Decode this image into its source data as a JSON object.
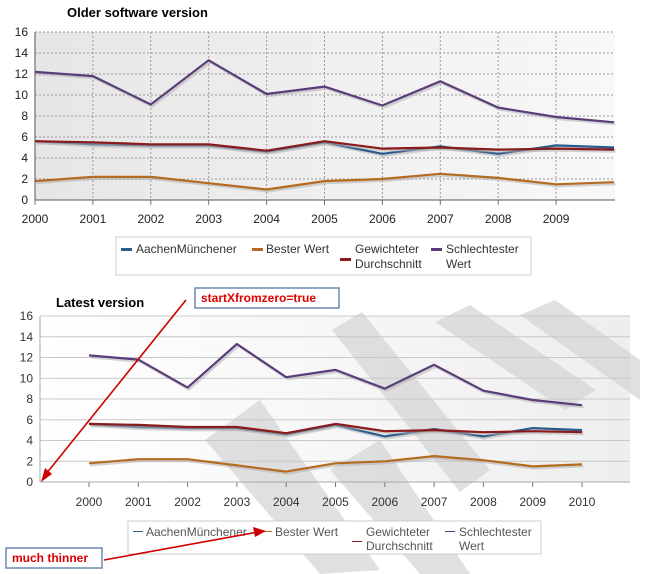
{
  "chart_data": [
    {
      "type": "line",
      "title": "Older software version",
      "x": [
        2000,
        2001,
        2002,
        2003,
        2004,
        2005,
        2006,
        2007,
        2008,
        2009,
        2010
      ],
      "x_tick_labels": [
        "2000",
        "2001",
        "2002",
        "2003",
        "2004",
        "2005",
        "2006",
        "2007",
        "2008",
        "2009"
      ],
      "ylim": [
        0,
        16
      ],
      "y_ticks": [
        0,
        2,
        4,
        6,
        8,
        10,
        12,
        14,
        16
      ],
      "grid": true,
      "legend_position": "bottom",
      "series": [
        {
          "name": "AachenMünchener",
          "color": "#2c5a8c",
          "values": [
            5.6,
            5.3,
            5.2,
            5.2,
            4.6,
            5.5,
            4.4,
            5.1,
            4.4,
            5.2,
            5.0
          ]
        },
        {
          "name": "Bester Wert",
          "color": "#b36b1f",
          "values": [
            1.8,
            2.2,
            2.2,
            1.6,
            1.0,
            1.8,
            2.0,
            2.5,
            2.1,
            1.5,
            1.7
          ]
        },
        {
          "name": "Gewichteter Durchschnitt",
          "color": "#8b1a1a",
          "values": [
            5.6,
            5.5,
            5.3,
            5.3,
            4.7,
            5.6,
            4.9,
            5.0,
            4.8,
            4.9,
            4.8
          ]
        },
        {
          "name": "Schlechtester Wert",
          "color": "#5a3c7a",
          "values": [
            12.2,
            11.8,
            9.1,
            13.3,
            10.1,
            10.8,
            9.0,
            11.3,
            8.8,
            7.9,
            7.4
          ]
        }
      ]
    },
    {
      "type": "line",
      "title": "Latest version",
      "x": [
        2000,
        2001,
        2002,
        2003,
        2004,
        2005,
        2006,
        2007,
        2008,
        2009,
        2010
      ],
      "x_tick_labels": [
        "2000",
        "2001",
        "2002",
        "2003",
        "2004",
        "2005",
        "2006",
        "2007",
        "2008",
        "2009",
        "2010"
      ],
      "ylim": [
        0,
        16
      ],
      "y_ticks": [
        0,
        2,
        4,
        6,
        8,
        10,
        12,
        14,
        16
      ],
      "grid": true,
      "legend_position": "bottom",
      "series": [
        {
          "name": "AachenMünchener",
          "color": "#2c5a8c",
          "values": [
            5.6,
            5.3,
            5.2,
            5.2,
            4.6,
            5.5,
            4.4,
            5.1,
            4.4,
            5.2,
            5.0
          ]
        },
        {
          "name": "Bester Wert",
          "color": "#b36b1f",
          "values": [
            1.8,
            2.2,
            2.2,
            1.6,
            1.0,
            1.8,
            2.0,
            2.5,
            2.1,
            1.5,
            1.7
          ]
        },
        {
          "name": "Gewichteter Durchschnitt",
          "color": "#8b1a1a",
          "values": [
            5.6,
            5.5,
            5.3,
            5.3,
            4.7,
            5.6,
            4.9,
            5.0,
            4.8,
            4.9,
            4.8
          ]
        },
        {
          "name": "Schlechtester Wert",
          "color": "#5a3c7a",
          "values": [
            12.2,
            11.8,
            9.1,
            13.3,
            10.1,
            10.8,
            9.0,
            11.3,
            8.8,
            7.9,
            7.4
          ]
        }
      ]
    }
  ],
  "annotations": {
    "start_x_label": "startXfromzero=true",
    "thinner_label": "much thinner"
  },
  "colors": {
    "annotation_text": "#dd0000",
    "annotation_arrow": "#cc0000",
    "watermark": "#d8d8d8"
  }
}
